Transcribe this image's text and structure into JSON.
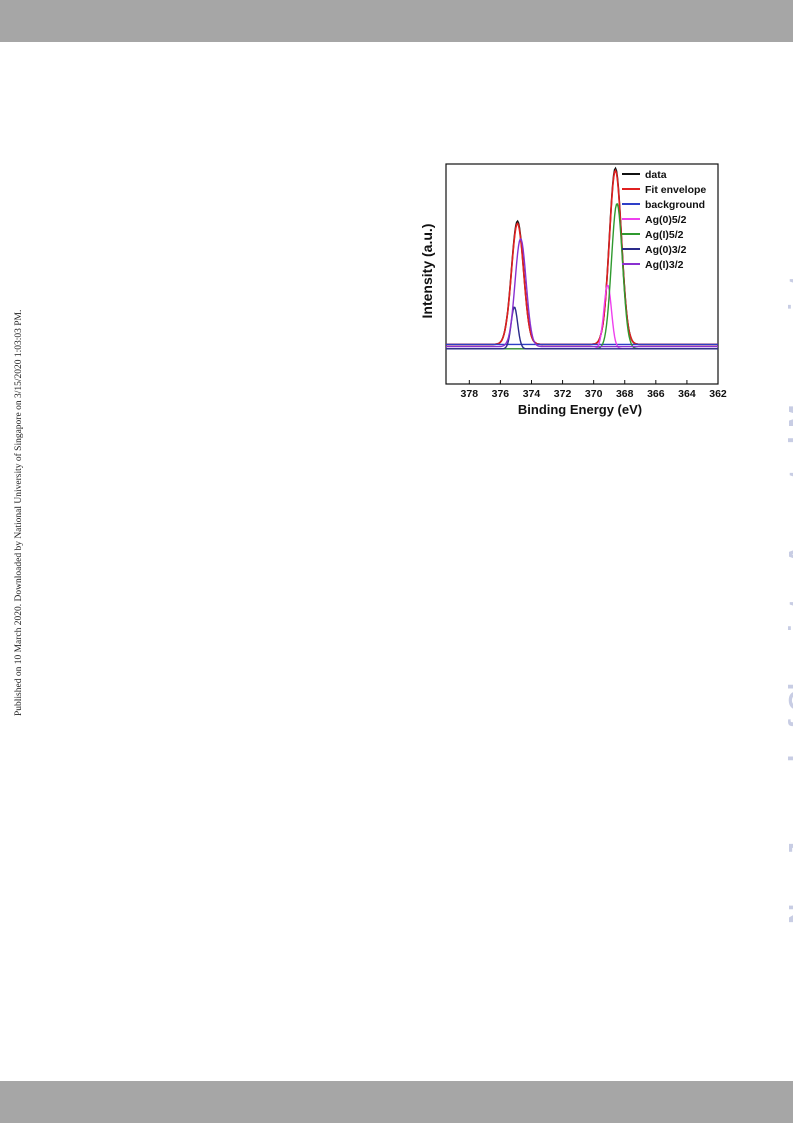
{
  "page": {
    "published_note": "Published on 10 March 2020. Downloaded by National University of Singapore on 3/15/2020 1:03:03 PM.",
    "watermark": "New Journal of Chemistry Accepted Manuscript"
  },
  "chart_data": {
    "type": "line",
    "title": "",
    "xlabel": "Binding Energy (eV)",
    "ylabel": "Intensity (a.u.)",
    "xlim": [
      379.5,
      362
    ],
    "x_reversed": true,
    "ylim": [
      0,
      1
    ],
    "xticks": [
      378,
      376,
      374,
      372,
      370,
      368,
      366,
      364,
      362
    ],
    "xtick_labels": [
      "378",
      "376",
      "374",
      "372",
      "370",
      "368",
      "366",
      "364",
      "362"
    ],
    "grid": false,
    "legend_position": "top-right",
    "series": [
      {
        "name": "data",
        "color": "#111111",
        "kind": "sum",
        "baseline": 0.18,
        "peaks": [
          {
            "center": 374.9,
            "height": 0.56,
            "width": 0.55
          },
          {
            "center": 368.6,
            "height": 0.8,
            "width": 0.55
          }
        ]
      },
      {
        "name": "Fit envelope",
        "color": "#e02020",
        "kind": "sum",
        "baseline": 0.18,
        "peaks": [
          {
            "center": 374.9,
            "height": 0.55,
            "width": 0.55
          },
          {
            "center": 368.6,
            "height": 0.79,
            "width": 0.55
          }
        ]
      },
      {
        "name": "background",
        "color": "#2e3fc8",
        "kind": "baseline",
        "baseline": 0.18,
        "peaks": []
      },
      {
        "name": "Ag(0)5/2",
        "color": "#ee40ee",
        "kind": "component",
        "baseline": 0.16,
        "peaks": [
          {
            "center": 369.1,
            "height": 0.29,
            "width": 0.35
          }
        ]
      },
      {
        "name": "Ag(I)5/2",
        "color": "#2f9a2f",
        "kind": "component",
        "baseline": 0.16,
        "peaks": [
          {
            "center": 368.5,
            "height": 0.66,
            "width": 0.5
          }
        ]
      },
      {
        "name": "Ag(0)3/2",
        "color": "#2a2a8a",
        "kind": "component",
        "baseline": 0.16,
        "peaks": [
          {
            "center": 375.1,
            "height": 0.19,
            "width": 0.3
          }
        ]
      },
      {
        "name": "Ag(I)3/2",
        "color": "#8a30d0",
        "kind": "component",
        "baseline": 0.17,
        "peaks": [
          {
            "center": 374.7,
            "height": 0.49,
            "width": 0.5
          }
        ]
      }
    ]
  }
}
